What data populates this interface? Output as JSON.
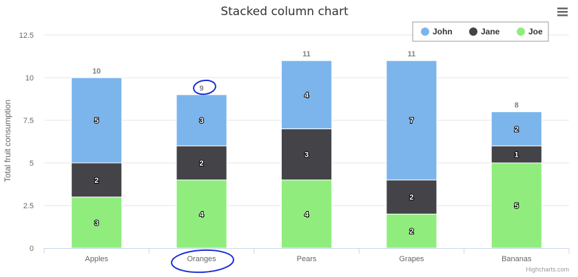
{
  "title": "Stacked column chart",
  "credits": "Highcharts.com",
  "menu_icon": "hamburger-menu-icon",
  "chart_data": {
    "type": "bar",
    "stacked": true,
    "title": "Stacked column chart",
    "xlabel": "",
    "ylabel": "Total fruit consumption",
    "categories": [
      "Apples",
      "Oranges",
      "Pears",
      "Grapes",
      "Bananas"
    ],
    "yticks": [
      "0",
      "2.5",
      "5",
      "7.5",
      "10",
      "12.5"
    ],
    "ylim": [
      0,
      12.5
    ],
    "grid": true,
    "legend_position": "top-right",
    "series": [
      {
        "name": "John",
        "values": [
          5,
          3,
          4,
          7,
          2
        ],
        "color": "#7cb5ec"
      },
      {
        "name": "Jane",
        "values": [
          2,
          2,
          3,
          2,
          1
        ],
        "color": "#434348"
      },
      {
        "name": "Joe",
        "values": [
          3,
          4,
          4,
          2,
          5
        ],
        "color": "#90ed7d"
      }
    ],
    "totals": [
      "10",
      "9",
      "11",
      "11",
      "8"
    ],
    "annotations": [
      "hand-drawn circle around total 9",
      "hand-drawn circle around Oranges"
    ]
  }
}
